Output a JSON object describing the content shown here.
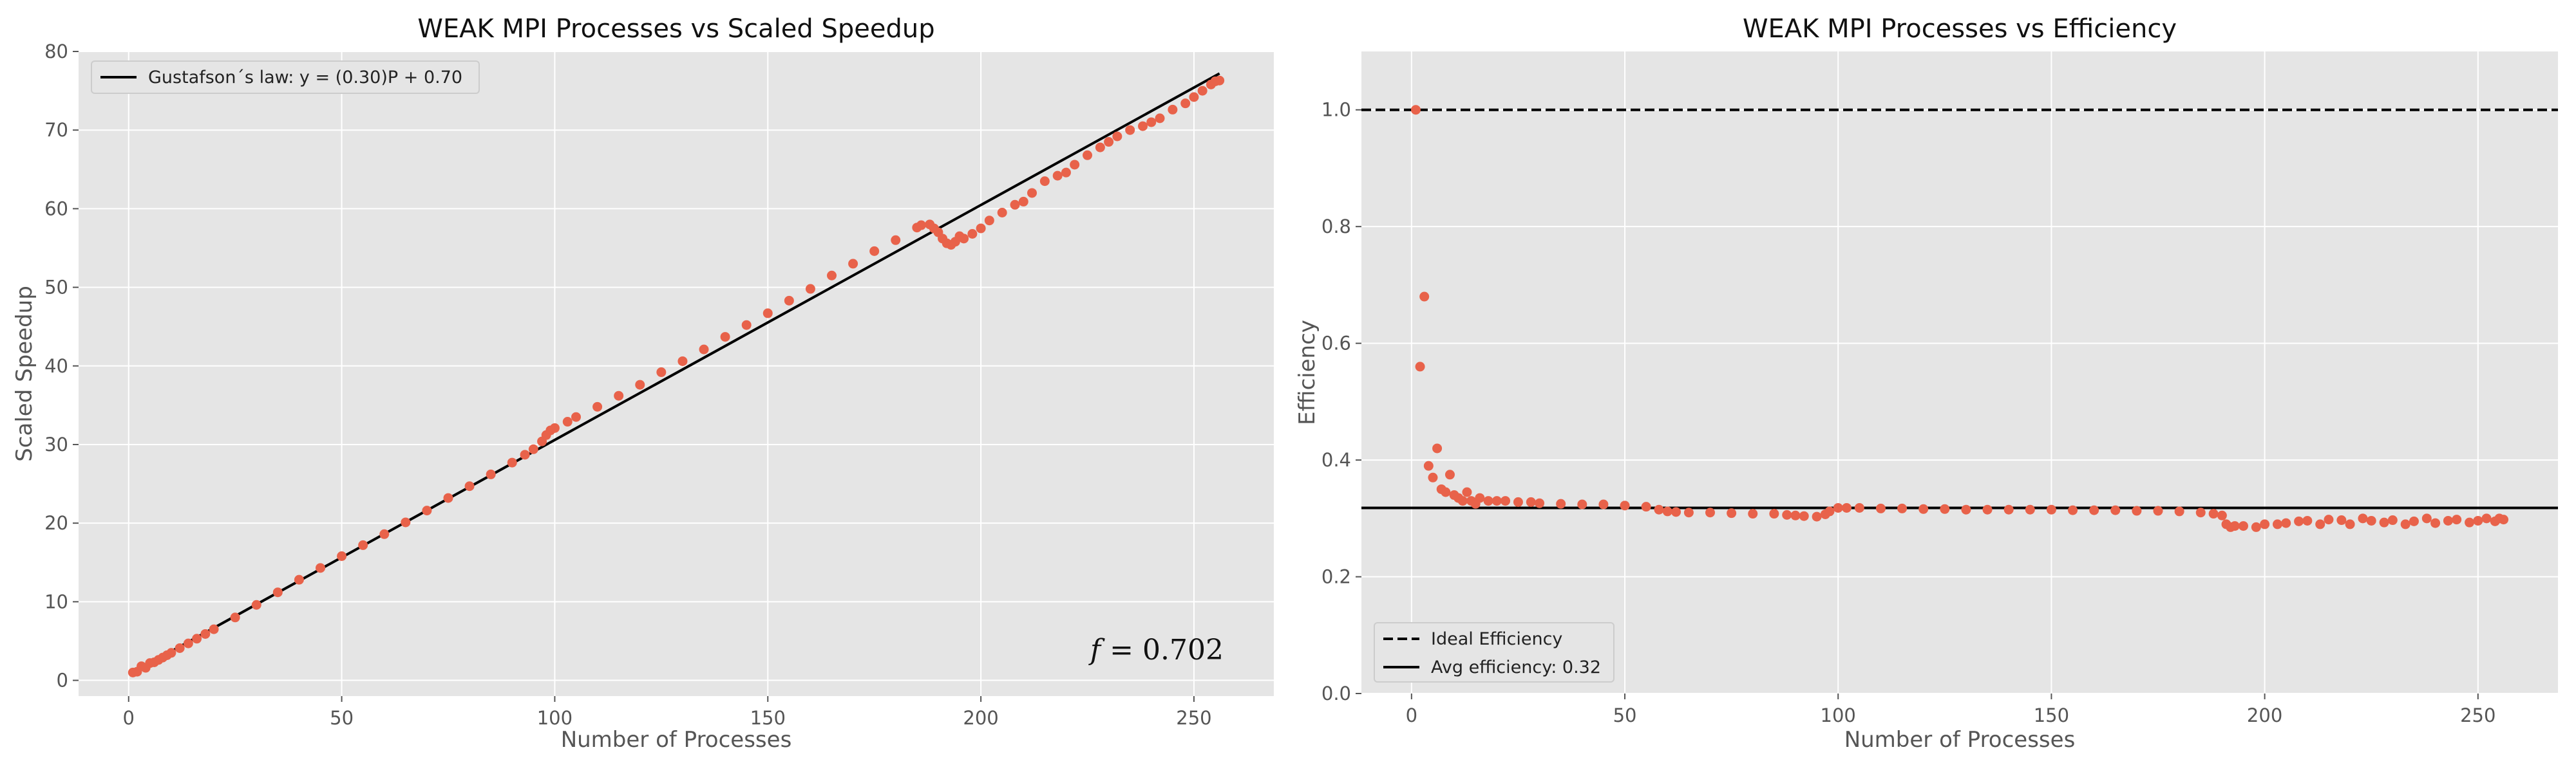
{
  "chart_data": [
    {
      "type": "scatter",
      "title": "WEAK MPI Processes vs Scaled Speedup",
      "xlabel": "Number of Processes",
      "ylabel": "Scaled Speedup",
      "xlim": [
        -11.75,
        268.75
      ],
      "ylim": [
        -2,
        80
      ],
      "xticks": [
        0,
        50,
        100,
        150,
        200,
        250
      ],
      "yticks": [
        0,
        10,
        20,
        30,
        40,
        50,
        60,
        70,
        80
      ],
      "grid": true,
      "legend_position": "top-left",
      "series": [
        {
          "name": "",
          "kind": "scatter",
          "color": "#E8624A",
          "x": [
            1,
            2,
            3,
            4,
            5,
            6,
            7,
            8,
            9,
            10,
            12,
            14,
            16,
            18,
            20,
            25,
            30,
            35,
            40,
            45,
            50,
            55,
            60,
            65,
            70,
            75,
            80,
            85,
            90,
            93,
            95,
            97,
            98,
            99,
            100,
            103,
            105,
            110,
            115,
            120,
            125,
            130,
            135,
            140,
            145,
            150,
            155,
            160,
            165,
            170,
            175,
            180,
            185,
            186,
            188,
            189,
            190,
            191,
            192,
            193,
            194,
            195,
            196,
            198,
            200,
            202,
            205,
            208,
            210,
            212,
            215,
            218,
            220,
            222,
            225,
            228,
            230,
            232,
            235,
            238,
            240,
            242,
            245,
            248,
            250,
            252,
            254,
            255,
            256
          ],
          "y": [
            1.0,
            1.1,
            1.8,
            1.6,
            2.2,
            2.3,
            2.6,
            2.9,
            3.2,
            3.5,
            4.1,
            4.7,
            5.3,
            5.9,
            6.5,
            8.0,
            9.6,
            11.2,
            12.8,
            14.3,
            15.8,
            17.2,
            18.6,
            20.1,
            21.6,
            23.2,
            24.7,
            26.2,
            27.7,
            28.7,
            29.4,
            30.4,
            31.2,
            31.8,
            32.1,
            32.9,
            33.5,
            34.8,
            36.2,
            37.6,
            39.2,
            40.6,
            42.1,
            43.7,
            45.2,
            46.7,
            48.3,
            49.8,
            51.5,
            53.0,
            54.6,
            56.0,
            57.6,
            57.9,
            58.0,
            57.5,
            57.0,
            56.2,
            55.6,
            55.4,
            55.8,
            56.5,
            56.2,
            56.8,
            57.5,
            58.5,
            59.5,
            60.5,
            60.9,
            62.0,
            63.5,
            64.2,
            64.6,
            65.6,
            66.8,
            67.8,
            68.5,
            69.2,
            70.0,
            70.5,
            71.0,
            71.5,
            72.6,
            73.4,
            74.2,
            75.0,
            75.8,
            76.2,
            76.3
          ]
        },
        {
          "name": "Gustafson´s law: y = (0.30)P + 0.70",
          "kind": "line",
          "color": "#000000",
          "x": [
            1,
            256
          ],
          "y": [
            1.0,
            77.2
          ]
        }
      ],
      "annotations": [
        {
          "text": "f = 0.702",
          "position": "bottom-right"
        }
      ]
    },
    {
      "type": "scatter",
      "title": "WEAK MPI Processes vs Efficiency",
      "xlabel": "Number of Processes",
      "ylabel": "Efficiency",
      "xlim": [
        -11.75,
        268.75
      ],
      "ylim": [
        0,
        1.1
      ],
      "xticks": [
        0,
        50,
        100,
        150,
        200,
        250
      ],
      "yticks": [
        0.0,
        0.2,
        0.4,
        0.6,
        0.8,
        1.0
      ],
      "grid": true,
      "legend_position": "bottom-left",
      "series": [
        {
          "name": "",
          "kind": "scatter",
          "color": "#E8624A",
          "x": [
            1,
            2,
            3,
            4,
            5,
            6,
            7,
            8,
            9,
            10,
            11,
            12,
            13,
            14,
            15,
            16,
            18,
            20,
            22,
            25,
            28,
            30,
            35,
            40,
            45,
            50,
            55,
            58,
            60,
            62,
            65,
            70,
            75,
            80,
            85,
            88,
            90,
            92,
            95,
            97,
            98,
            100,
            102,
            105,
            110,
            115,
            120,
            125,
            130,
            135,
            140,
            145,
            150,
            155,
            160,
            165,
            170,
            175,
            180,
            185,
            188,
            190,
            191,
            192,
            193,
            195,
            198,
            200,
            203,
            205,
            208,
            210,
            213,
            215,
            218,
            220,
            223,
            225,
            228,
            230,
            233,
            235,
            238,
            240,
            243,
            245,
            248,
            250,
            252,
            254,
            255,
            256
          ],
          "y": [
            1.0,
            0.56,
            0.68,
            0.39,
            0.37,
            0.42,
            0.35,
            0.345,
            0.375,
            0.34,
            0.335,
            0.33,
            0.345,
            0.33,
            0.325,
            0.335,
            0.33,
            0.33,
            0.33,
            0.328,
            0.328,
            0.326,
            0.325,
            0.324,
            0.324,
            0.322,
            0.32,
            0.315,
            0.312,
            0.311,
            0.31,
            0.31,
            0.309,
            0.308,
            0.308,
            0.306,
            0.305,
            0.304,
            0.303,
            0.307,
            0.312,
            0.318,
            0.318,
            0.318,
            0.317,
            0.317,
            0.316,
            0.316,
            0.315,
            0.315,
            0.315,
            0.315,
            0.315,
            0.314,
            0.314,
            0.314,
            0.313,
            0.313,
            0.312,
            0.31,
            0.308,
            0.305,
            0.29,
            0.285,
            0.287,
            0.287,
            0.285,
            0.29,
            0.29,
            0.292,
            0.295,
            0.296,
            0.29,
            0.298,
            0.297,
            0.29,
            0.3,
            0.296,
            0.293,
            0.297,
            0.29,
            0.295,
            0.3,
            0.292,
            0.296,
            0.298,
            0.293,
            0.296,
            0.3,
            0.295,
            0.3,
            0.298
          ]
        },
        {
          "name": "Ideal Efficiency",
          "kind": "hline",
          "style": "dashed",
          "color": "#000000",
          "y": 1.0
        },
        {
          "name": "Avg efficiency: 0.32",
          "kind": "hline",
          "style": "solid",
          "color": "#000000",
          "y": 0.318
        }
      ]
    }
  ],
  "colors": {
    "axes_background": "#E5E5E5",
    "grid": "#FFFFFF",
    "marker": "#E8624A",
    "line": "#000000"
  }
}
